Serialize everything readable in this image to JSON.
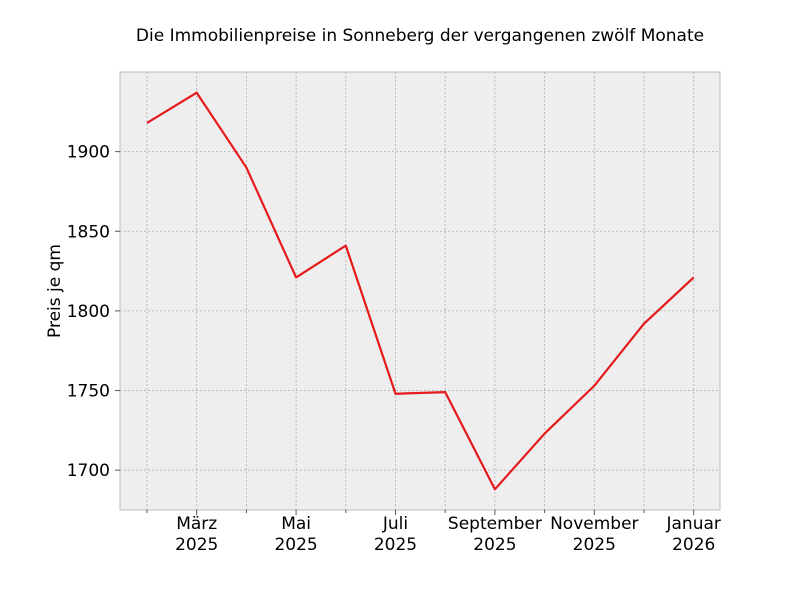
{
  "chart_data": {
    "type": "line",
    "title": "Die Immobilienpreise in Sonneberg der vergangenen zwölf Monate",
    "xlabel": "",
    "ylabel": "Preis je qm",
    "x": [
      "2025-02",
      "2025-03",
      "2025-04",
      "2025-05",
      "2025-06",
      "2025-07",
      "2025-08",
      "2025-09",
      "2025-10",
      "2025-11",
      "2025-12",
      "2026-01"
    ],
    "series": [
      {
        "values": [
          1918,
          1937,
          1890,
          1821,
          1841,
          1748,
          1749,
          1688,
          1723,
          1753,
          1792,
          1821
        ]
      }
    ],
    "ylim": [
      1675,
      1950
    ],
    "yticks": [
      1700,
      1750,
      1800,
      1850,
      1900
    ],
    "xtick_labels": [
      {
        "month": "März",
        "year": "2025"
      },
      {
        "month": "Mai",
        "year": "2025"
      },
      {
        "month": "Juli",
        "year": "2025"
      },
      {
        "month": "September",
        "year": "2025"
      },
      {
        "month": "November",
        "year": "2025"
      },
      {
        "month": "Januar",
        "year": "2026"
      }
    ],
    "grid": true,
    "colors": {
      "line": "#e41a1c",
      "plot_bg": "#eeeeee",
      "grid": "#b0b0b0",
      "frame": "#bcbcbc"
    }
  }
}
